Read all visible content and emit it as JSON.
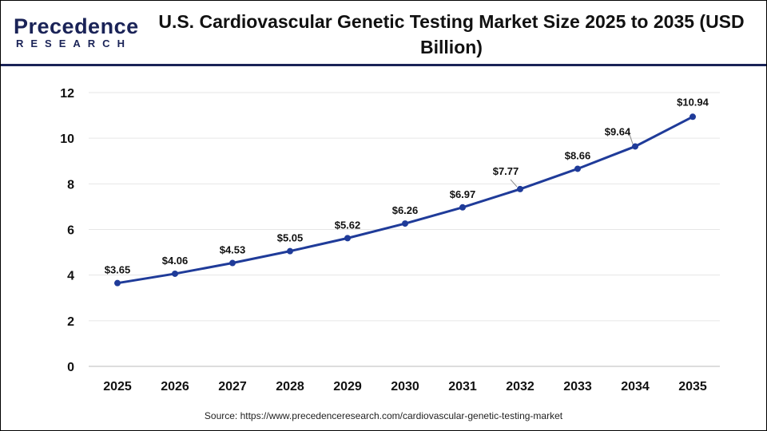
{
  "logo": {
    "line1": "Precedence",
    "line2": "RESEARCH"
  },
  "title": "U.S. Cardiovascular Genetic Testing Market Size 2025 to 2035 (USD Billion)",
  "source": "Source: https://www.precedenceresearch.com/cardiovascular-genetic-testing-market",
  "chart_data": {
    "type": "line",
    "title": "U.S. Cardiovascular Genetic Testing Market Size 2025 to 2035 (USD Billion)",
    "categories": [
      "2025",
      "2026",
      "2027",
      "2028",
      "2029",
      "2030",
      "2031",
      "2032",
      "2033",
      "2034",
      "2035"
    ],
    "values": [
      3.65,
      4.06,
      4.53,
      5.05,
      5.62,
      6.26,
      6.97,
      7.77,
      8.66,
      9.64,
      10.94
    ],
    "data_labels": [
      "$3.65",
      "$4.06",
      "$4.53",
      "$5.05",
      "$5.62",
      "$6.26",
      "$6.97",
      "$7.77",
      "$8.66",
      "$9.64",
      "$10.94"
    ],
    "ylim": [
      0,
      12
    ],
    "yticks": [
      0,
      2,
      4,
      6,
      8,
      10,
      12
    ],
    "grid": true,
    "line_color": "#1f3b99"
  }
}
